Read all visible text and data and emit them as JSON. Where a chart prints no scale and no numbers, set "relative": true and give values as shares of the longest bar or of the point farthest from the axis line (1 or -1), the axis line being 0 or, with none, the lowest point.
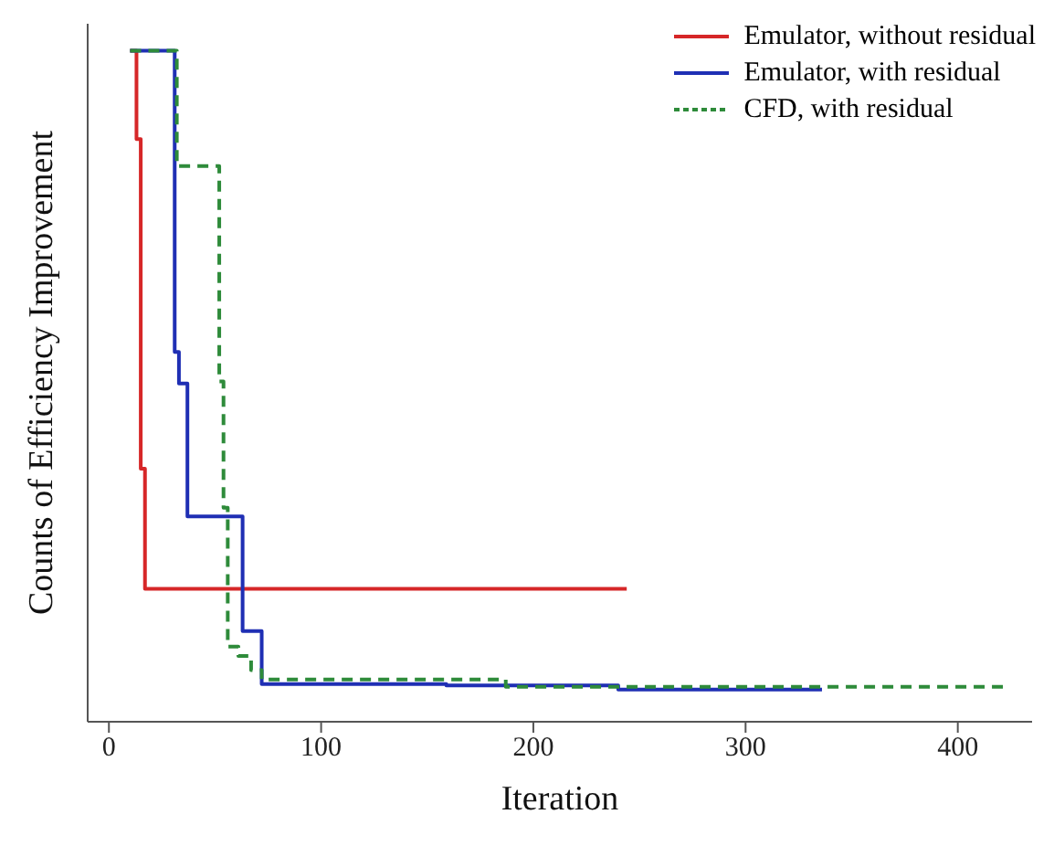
{
  "chart_data": {
    "type": "step",
    "xlabel": "Iteration",
    "ylabel": "Counts of Efficiency Improvement",
    "relative": true,
    "xlim": [
      -10,
      435
    ],
    "xticks": [
      0,
      100,
      200,
      300,
      400
    ],
    "tick_labels": "x",
    "legend": "top right",
    "series": [
      {
        "name": "Emulator, without residual",
        "color": "#d62728",
        "x": [
          10,
          13,
          15,
          17,
          244
        ],
        "values": [
          1,
          0.868,
          0.377,
          0.198,
          0.198
        ]
      },
      {
        "name": "Emulator, with residual",
        "color": "#1f2fb4",
        "x": [
          10,
          31,
          33,
          37,
          63,
          72,
          159,
          240,
          336
        ],
        "values": [
          1,
          0.551,
          0.504,
          0.306,
          0.135,
          0.056,
          0.054,
          0.048,
          0.048
        ]
      },
      {
        "name": "CFD, with residual",
        "color": "#2e8b3a",
        "line_style": "dashed",
        "x": [
          10,
          32,
          52,
          54,
          56,
          61,
          67,
          72,
          187,
          422
        ],
        "values": [
          1,
          0.828,
          0.507,
          0.319,
          0.112,
          0.098,
          0.077,
          0.063,
          0.052,
          0.052
        ]
      }
    ]
  }
}
